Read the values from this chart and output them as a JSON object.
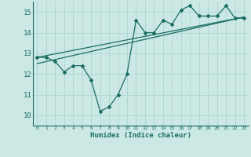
{
  "xlabel": "Humidex (Indice chaleur)",
  "ylabel": "",
  "bg_color": "#cce8e4",
  "grid_color": "#b0d8d4",
  "line_color": "#1a6e64",
  "xlim": [
    -0.5,
    23.5
  ],
  "ylim": [
    9.5,
    15.5
  ],
  "xticks": [
    0,
    1,
    2,
    3,
    4,
    5,
    6,
    7,
    8,
    9,
    10,
    11,
    12,
    13,
    14,
    15,
    16,
    17,
    18,
    19,
    20,
    21,
    22,
    23
  ],
  "yticks": [
    10,
    11,
    12,
    13,
    14,
    15
  ],
  "data_x": [
    0,
    1,
    2,
    3,
    4,
    5,
    6,
    7,
    8,
    9,
    10,
    11,
    12,
    13,
    14,
    15,
    16,
    17,
    18,
    19,
    20,
    21,
    22,
    23
  ],
  "data_y": [
    12.8,
    12.8,
    12.6,
    12.1,
    12.4,
    12.4,
    11.7,
    10.2,
    10.4,
    11.0,
    12.0,
    14.6,
    14.0,
    14.0,
    14.6,
    14.4,
    15.1,
    15.3,
    14.8,
    14.8,
    14.8,
    15.3,
    14.7,
    14.7
  ],
  "trend1_x": [
    0,
    23
  ],
  "trend1_y": [
    12.8,
    14.75
  ],
  "trend2_x": [
    0,
    23
  ],
  "trend2_y": [
    12.5,
    14.75
  ]
}
